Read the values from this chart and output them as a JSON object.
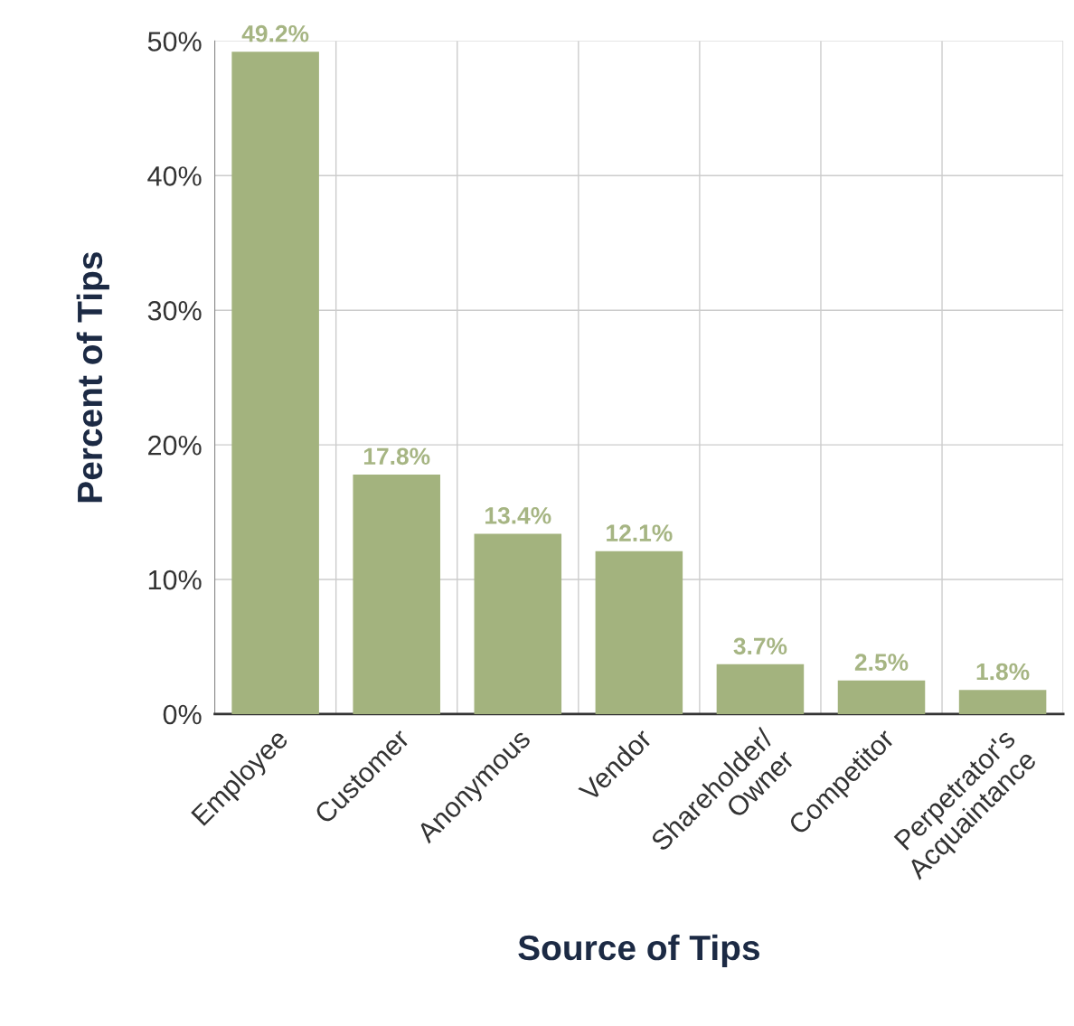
{
  "chart_data": {
    "type": "bar",
    "xlabel": "Source of Tips",
    "ylabel": "Percent of Tips",
    "categories": [
      "Employee",
      "Customer",
      "Anonymous",
      "Vendor",
      "Shareholder/\nOwner",
      "Competitor",
      "Perpetrator's\nAcquaintance"
    ],
    "values": [
      49.2,
      17.8,
      13.4,
      12.1,
      3.7,
      2.5,
      1.8
    ],
    "value_labels": [
      "49.2%",
      "17.8%",
      "13.4%",
      "12.1%",
      "3.7%",
      "2.5%",
      "1.8%"
    ],
    "color": "#a3b37e",
    "ylim": [
      0,
      50
    ],
    "yticks": [
      {
        "value": 0,
        "label": "0%"
      },
      {
        "value": 10,
        "label": "10%"
      },
      {
        "value": 20,
        "label": "20%"
      },
      {
        "value": 30,
        "label": "30%"
      },
      {
        "value": 40,
        "label": "40%"
      },
      {
        "value": 50,
        "label": "50%"
      }
    ],
    "grid": true,
    "legend": false
  }
}
